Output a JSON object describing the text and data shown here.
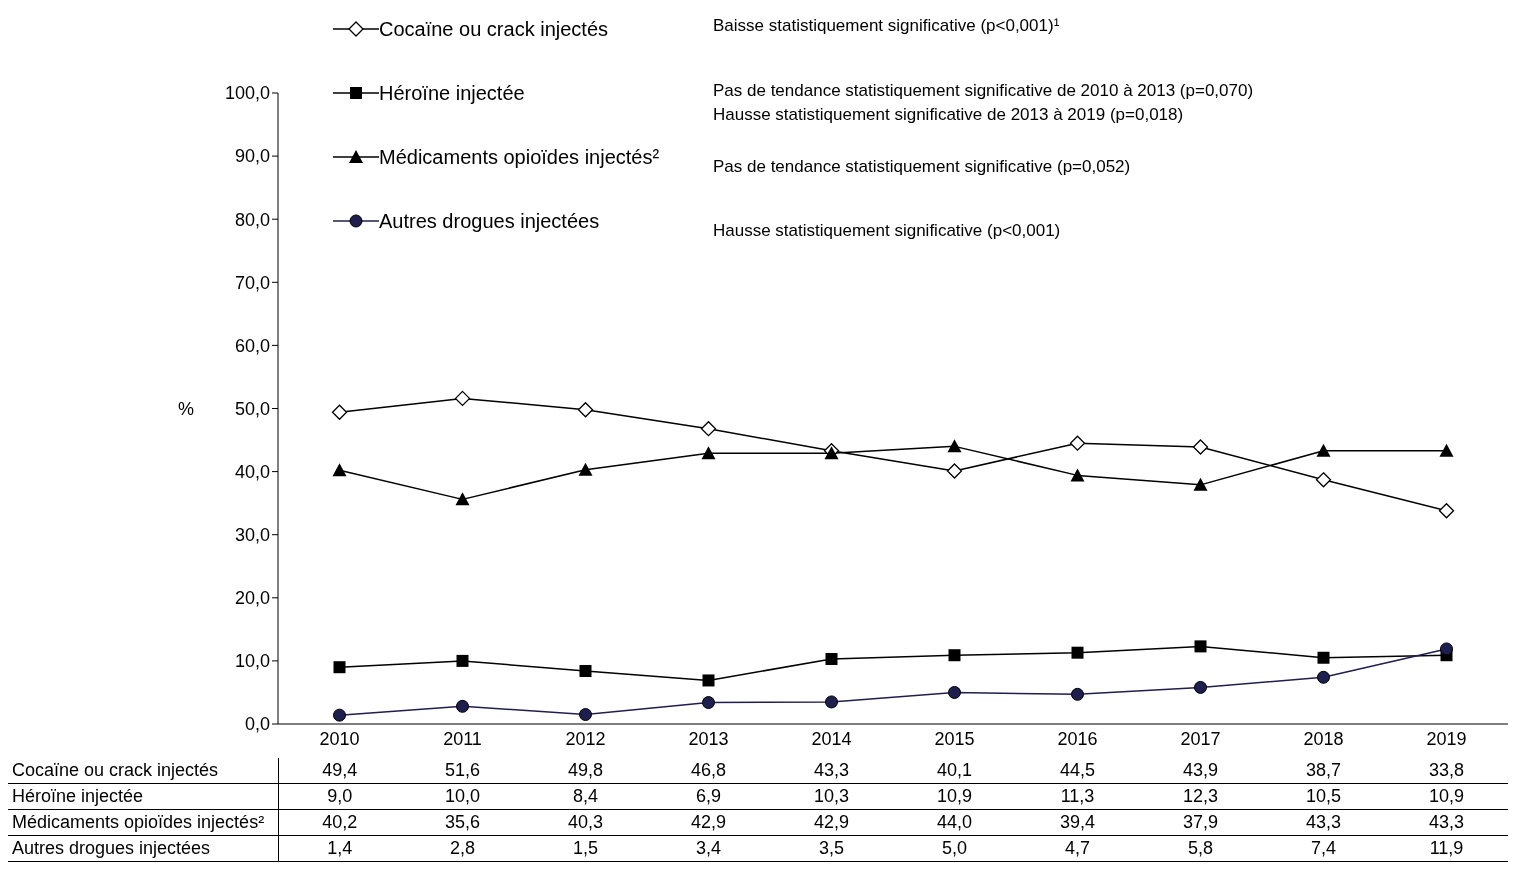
{
  "chart_data": {
    "type": "line",
    "ylabel": "%",
    "categories": [
      "2010",
      "2011",
      "2012",
      "2013",
      "2014",
      "2015",
      "2016",
      "2017",
      "2018",
      "2019"
    ],
    "series": [
      {
        "name": "Cocaïne ou crack injectés",
        "color": "#000000",
        "marker": "diamond",
        "values": [
          49.4,
          51.6,
          49.8,
          46.8,
          43.3,
          40.1,
          44.5,
          43.9,
          38.7,
          33.8
        ],
        "value_labels": [
          "49,4",
          "51,6",
          "49,8",
          "46,8",
          "43,3",
          "40,1",
          "44,5",
          "43,9",
          "38,7",
          "33,8"
        ]
      },
      {
        "name": "Héroïne injectée",
        "color": "#000000",
        "marker": "square",
        "values": [
          9.0,
          10.0,
          8.4,
          6.9,
          10.3,
          10.9,
          11.3,
          12.3,
          10.5,
          10.9
        ],
        "value_labels": [
          "9,0",
          "10,0",
          "8,4",
          "6,9",
          "10,3",
          "10,9",
          "11,3",
          "12,3",
          "10,5",
          "10,9"
        ]
      },
      {
        "name": "Médicaments opioïdes injectés²",
        "color": "#000000",
        "marker": "triangle",
        "values": [
          40.2,
          35.6,
          40.3,
          42.9,
          42.9,
          44.0,
          39.4,
          37.9,
          43.3,
          43.3
        ],
        "value_labels": [
          "40,2",
          "35,6",
          "40,3",
          "42,9",
          "42,9",
          "44,0",
          "39,4",
          "37,9",
          "43,3",
          "43,3"
        ]
      },
      {
        "name": "Autres drogues injectées",
        "color": "#1f1f4f",
        "marker": "circle",
        "values": [
          1.4,
          2.8,
          1.5,
          3.4,
          3.5,
          5.0,
          4.7,
          5.8,
          7.4,
          11.9
        ],
        "value_labels": [
          "1,4",
          "2,8",
          "1,5",
          "3,4",
          "3,5",
          "5,0",
          "4,7",
          "5,8",
          "7,4",
          "11,9"
        ]
      }
    ],
    "ylim": [
      0,
      100
    ],
    "yticks": [
      {
        "value": 0,
        "label": "0,0"
      },
      {
        "value": 10,
        "label": "10,0"
      },
      {
        "value": 20,
        "label": "20,0"
      },
      {
        "value": 30,
        "label": "30,0"
      },
      {
        "value": 40,
        "label": "40,0"
      },
      {
        "value": 50,
        "label": "50,0"
      },
      {
        "value": 60,
        "label": "60,0"
      },
      {
        "value": 70,
        "label": "70,0"
      },
      {
        "value": 80,
        "label": "80,0"
      },
      {
        "value": 90,
        "label": "90,0"
      },
      {
        "value": 100,
        "label": "100,0"
      }
    ],
    "grid": false,
    "legend": "top left",
    "annotations": [
      "Baisse statistiquement significative (p<0,001)¹",
      "Pas de tendance statistiquement significative de 2010 à 2013 (p=0,070)",
      "Hausse statistiquement significative de 2013 à 2019 (p=0,018)",
      "Pas de tendance statistiquement significative (p=0,052)",
      "Hausse statistiquement significative (p<0,001)"
    ]
  }
}
